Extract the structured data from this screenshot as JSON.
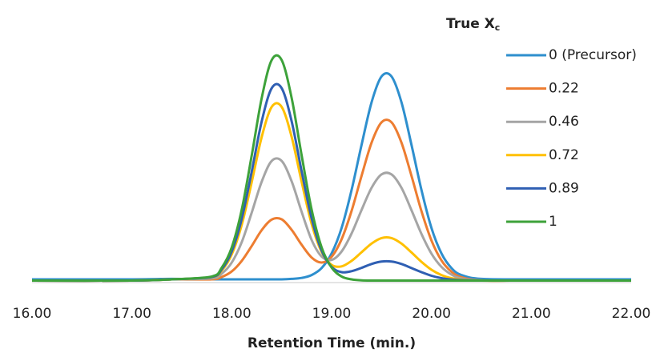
{
  "chart_data": {
    "type": "line",
    "x_label": "Retention Time (min.)",
    "legend_title": "True X",
    "legend_title_subscript": "c",
    "legend": "right",
    "x": [
      16,
      17,
      17.4,
      17.8,
      17.9,
      18,
      18.1,
      18.2,
      18.3,
      18.4,
      18.5,
      18.6,
      18.7,
      18.8,
      18.9,
      19,
      19.1,
      19.2,
      19.3,
      19.4,
      19.5,
      19.6,
      19.7,
      19.8,
      19.9,
      20,
      20.1,
      20.2,
      20.3,
      20.5,
      21,
      22
    ],
    "xlim": [
      16,
      22
    ],
    "xticks": [
      {
        "value": 16,
        "label": "16.00"
      },
      {
        "value": 17,
        "label": "17.00"
      },
      {
        "value": 18,
        "label": "18.00"
      },
      {
        "value": 19,
        "label": "19.00"
      },
      {
        "value": 20,
        "label": "20.00"
      },
      {
        "value": 21,
        "label": "21.00"
      },
      {
        "value": 22,
        "label": "22.00"
      }
    ],
    "ylim": [
      0,
      100
    ],
    "series": [
      {
        "name": "0 (Precursor)",
        "color": "#2e8fce",
        "values": [
          1,
          1,
          1.2,
          1,
          1,
          1,
          1,
          1,
          1,
          1,
          1,
          1.2,
          1.6,
          2.8,
          5.7,
          11.8,
          22.4,
          38.2,
          57.0,
          74.7,
          85.5,
          85.5,
          74.7,
          57.0,
          38.2,
          22.4,
          11.8,
          5.7,
          2.8,
          1.2,
          1,
          1
        ]
      },
      {
        "name": "0.22",
        "color": "#ed7d31",
        "values": [
          0.5,
          0.5,
          1,
          1.0,
          2.0,
          4.3,
          8.7,
          14.9,
          21.5,
          25.9,
          26.0,
          21.6,
          15.4,
          10.1,
          8.0,
          10.4,
          17.7,
          29.5,
          44.1,
          57.9,
          66.4,
          66.4,
          57.9,
          44.1,
          29.4,
          17.2,
          8.9,
          4.2,
          1.9,
          0.6,
          0.5,
          0.5
        ]
      },
      {
        "name": "0.46",
        "color": "#a5a5a5",
        "values": [
          0.5,
          0.5,
          1,
          1.4,
          3.4,
          8.0,
          16.5,
          28.8,
          41.7,
          50.3,
          50.3,
          41.8,
          29.1,
          17.4,
          10.5,
          9.1,
          12.6,
          20.1,
          29.9,
          39.1,
          44.7,
          44.7,
          39.1,
          29.8,
          19.9,
          11.7,
          6.2,
          3.0,
          1.4,
          0.6,
          0.5,
          0.5
        ]
      },
      {
        "name": "0.72",
        "color": "#ffc000",
        "values": [
          0.5,
          0.5,
          1,
          1.9,
          4.7,
          11.4,
          23.7,
          41.5,
          60.3,
          72.8,
          72.8,
          60.3,
          41.6,
          24.1,
          12.4,
          7.0,
          6.4,
          8.7,
          12.3,
          15.9,
          18.2,
          18.2,
          15.9,
          12.2,
          8.3,
          5.0,
          2.8,
          1.5,
          0.9,
          0.5,
          0.5,
          0.5
        ]
      },
      {
        "name": "0.89",
        "color": "#2f5fb3",
        "values": [
          0.5,
          0.5,
          1,
          2.0,
          5.2,
          12.6,
          26.2,
          45.9,
          66.8,
          80.6,
          80.6,
          66.8,
          46.0,
          26.4,
          13.0,
          6.2,
          4.0,
          4.4,
          5.8,
          7.4,
          8.4,
          8.4,
          7.4,
          5.7,
          4.0,
          2.5,
          1.5,
          0.9,
          0.7,
          0.5,
          0.5,
          0.5
        ]
      },
      {
        "name": "1",
        "color": "#3da23a",
        "values": [
          0.5,
          0.5,
          1,
          2.2,
          5.9,
          14.3,
          30.0,
          52.6,
          76.5,
          92.3,
          92.3,
          76.5,
          52.6,
          30.0,
          14.3,
          5.9,
          2.2,
          1.0,
          0.6,
          0.5,
          0.5,
          0.5,
          0.5,
          0.5,
          0.5,
          0.5,
          0.5,
          0.5,
          0.5,
          0.5,
          0.5,
          0.5
        ]
      }
    ]
  }
}
